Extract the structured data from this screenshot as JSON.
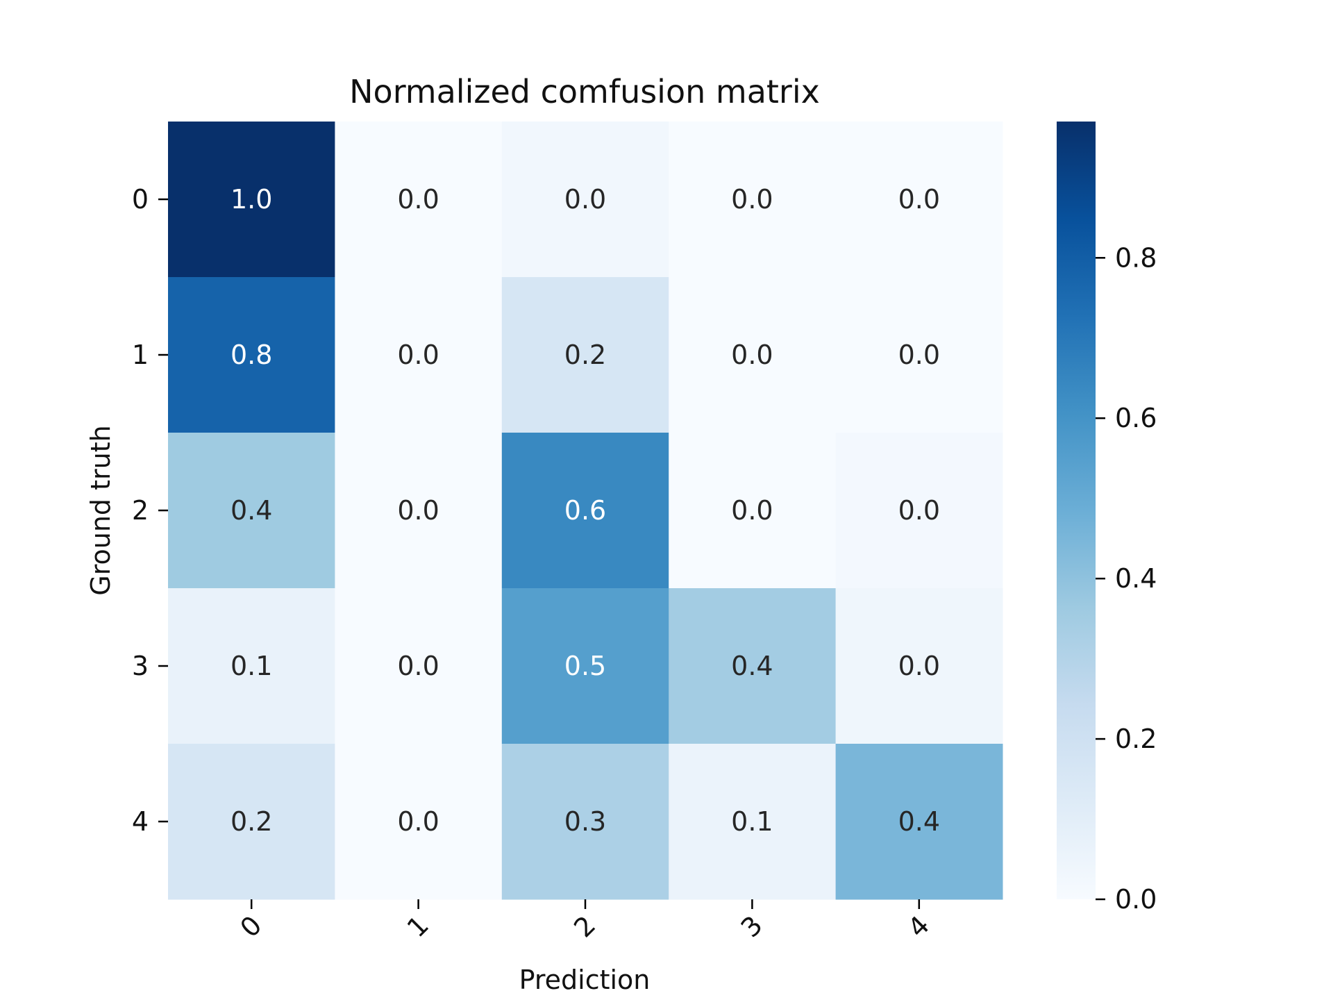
{
  "chart_data": {
    "type": "heatmap",
    "title": "Normalized comfusion matrix",
    "xlabel": "Prediction",
    "ylabel": "Ground truth",
    "x_categories": [
      "0",
      "1",
      "2",
      "3",
      "4"
    ],
    "y_categories": [
      "0",
      "1",
      "2",
      "3",
      "4"
    ],
    "values": [
      [
        0.97,
        0.0,
        0.03,
        0.0,
        0.0
      ],
      [
        0.78,
        0.0,
        0.16,
        0.0,
        0.0
      ],
      [
        0.36,
        0.0,
        0.64,
        0.0,
        0.02
      ],
      [
        0.07,
        0.0,
        0.55,
        0.35,
        0.04
      ],
      [
        0.16,
        0.0,
        0.32,
        0.06,
        0.45
      ]
    ],
    "cell_labels": [
      [
        "1.0",
        "0.0",
        "0.0",
        "0.0",
        "0.0"
      ],
      [
        "0.8",
        "0.0",
        "0.2",
        "0.0",
        "0.0"
      ],
      [
        "0.4",
        "0.0",
        "0.6",
        "0.0",
        "0.0"
      ],
      [
        "0.1",
        "0.0",
        "0.5",
        "0.4",
        "0.0"
      ],
      [
        "0.2",
        "0.0",
        "0.3",
        "0.1",
        "0.4"
      ]
    ],
    "colorbar": {
      "range": [
        0,
        0.97
      ],
      "ticks": [
        0.0,
        0.2,
        0.4,
        0.6,
        0.8
      ],
      "tick_labels": [
        "0.0",
        "0.2",
        "0.4",
        "0.6",
        "0.8"
      ],
      "colormap": "Blues",
      "placement": "right"
    },
    "x_tick_rotation": "45"
  }
}
